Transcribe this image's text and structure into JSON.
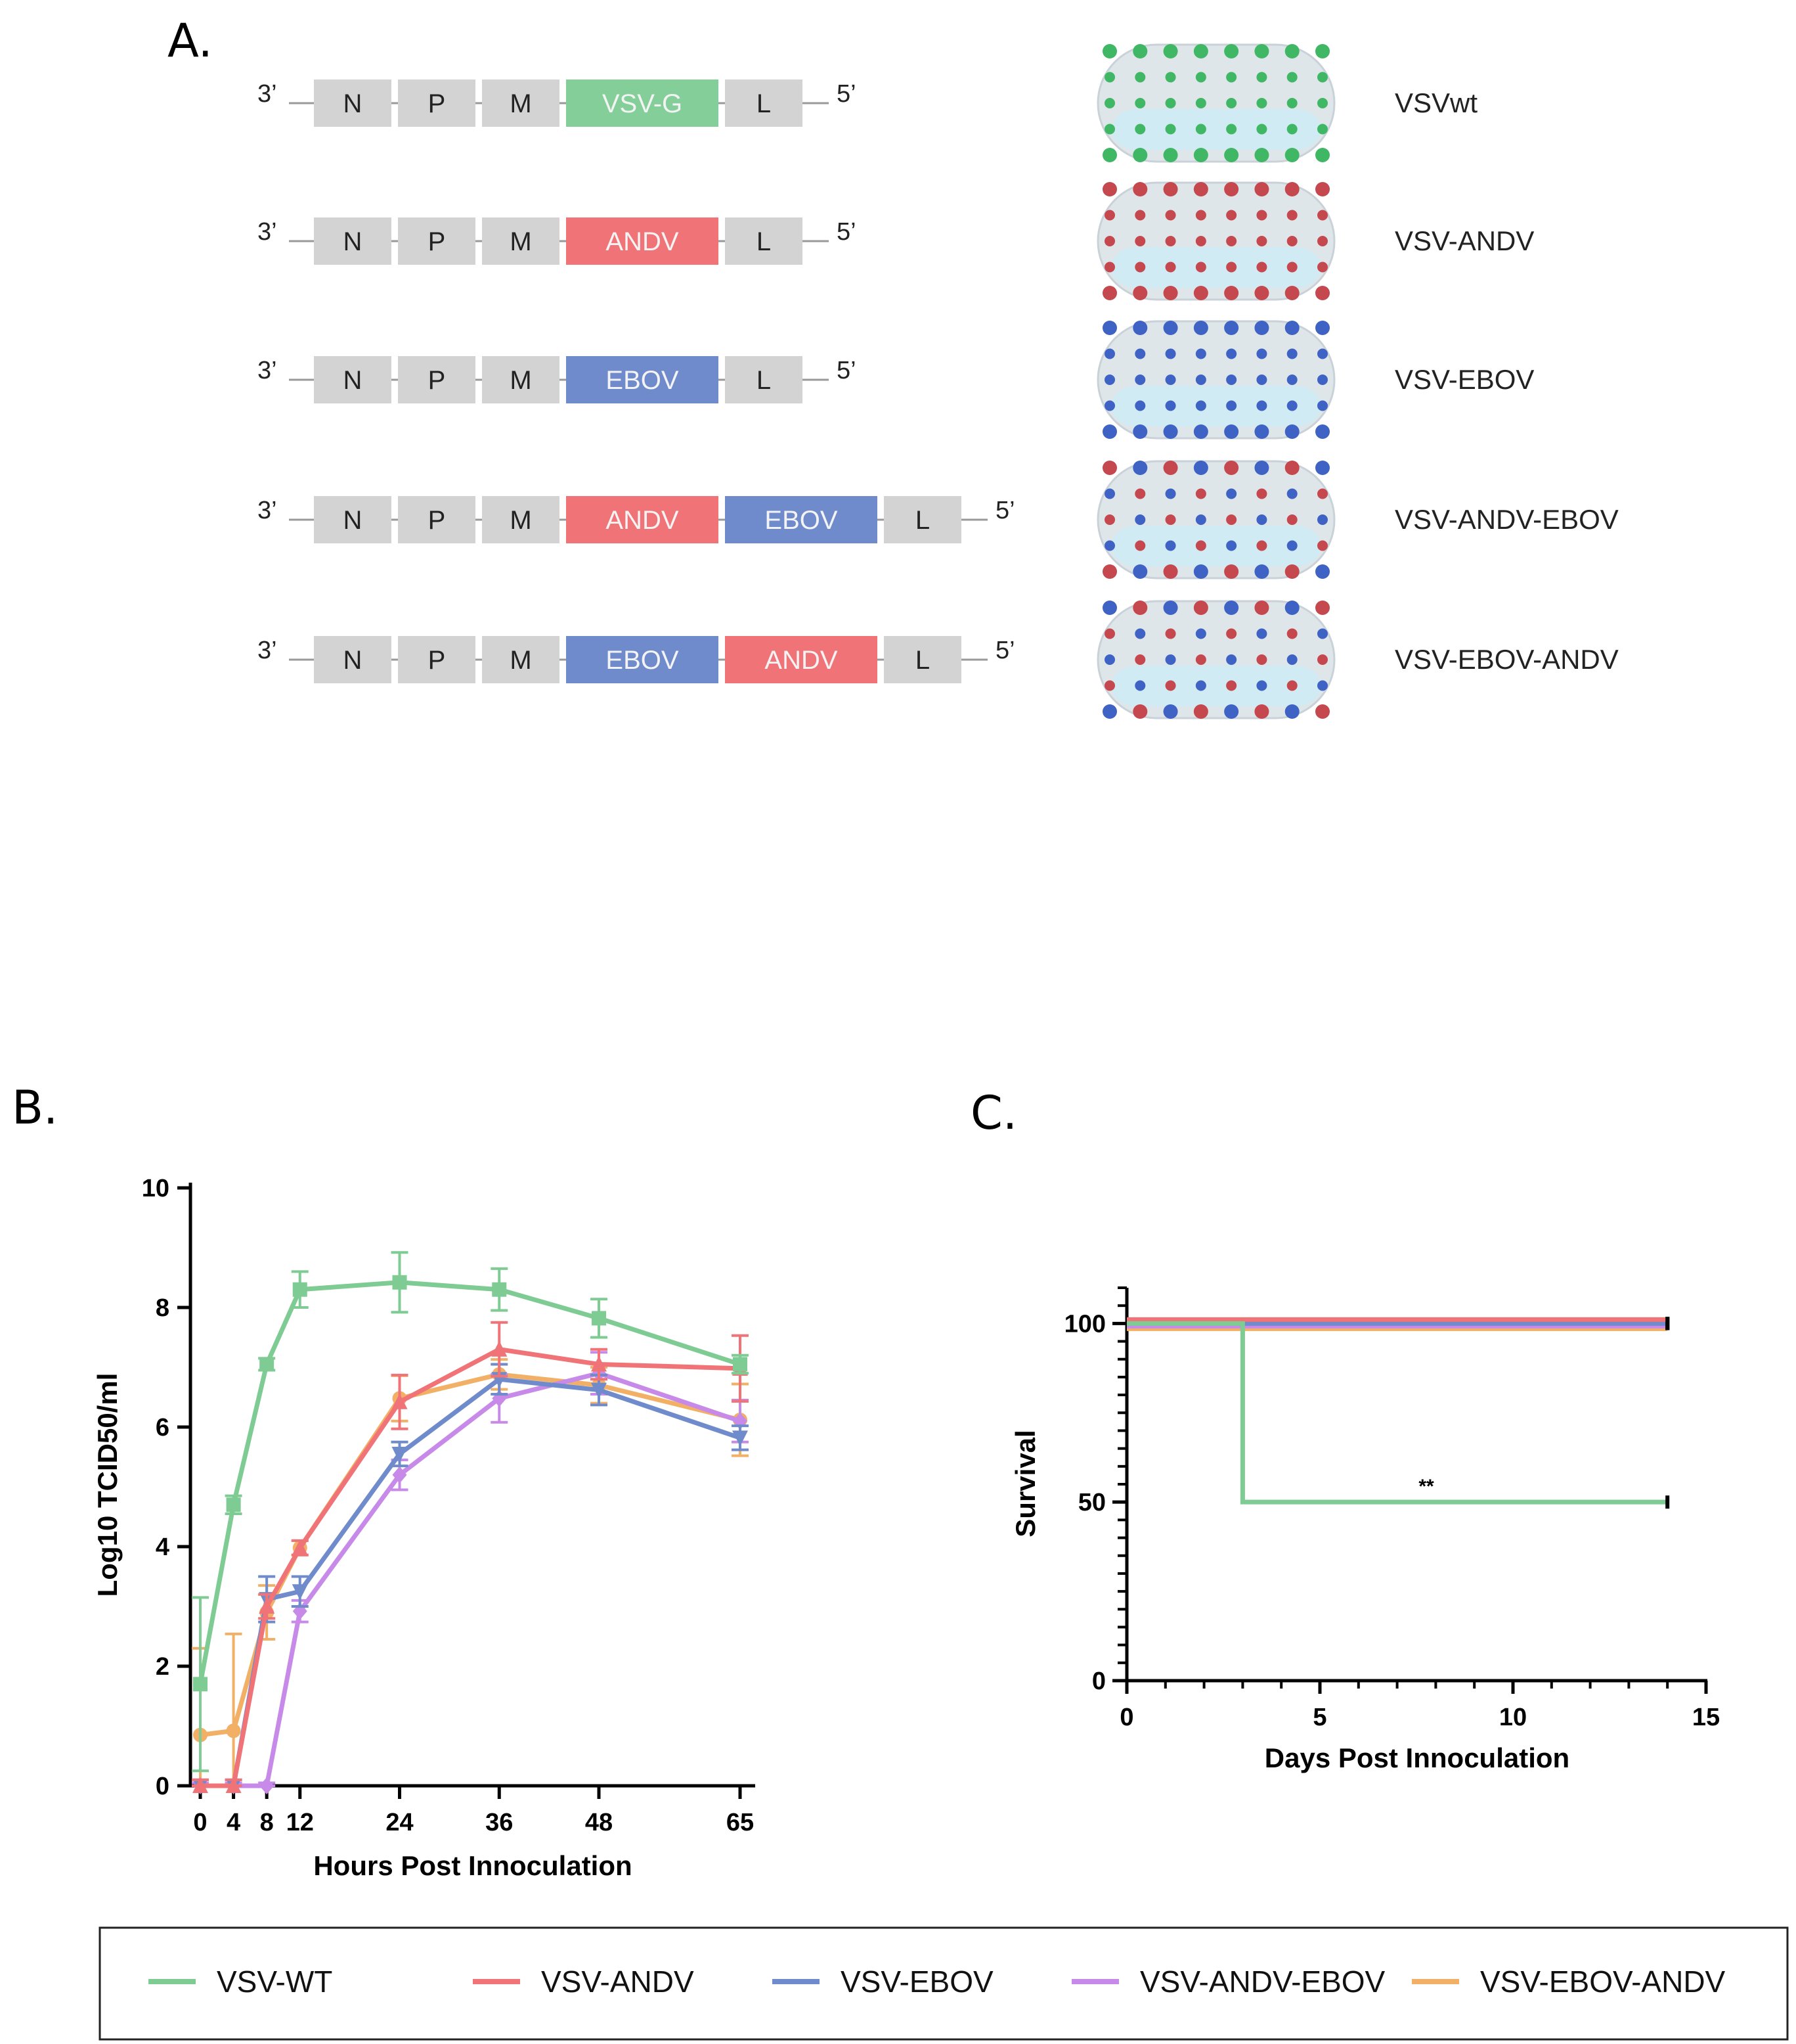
{
  "panels": {
    "a": "A.",
    "b": "B.",
    "c": "C."
  },
  "colors": {
    "wt": "#7ecb93",
    "andv": "#f07377",
    "ebov": "#6f8bcb",
    "andv_ebov": "#c88ae8",
    "ebov_andv": "#f2b066",
    "gene_box": "#d3d3d3",
    "gene_g": "#84cf99",
    "gene_andv": "#f07377",
    "gene_ebov": "#6f8bcb"
  },
  "panel_a": {
    "constructs": [
      {
        "name": "VSVwt",
        "prime3": "3’",
        "prime5": "5’",
        "genes": [
          "N",
          "P",
          "M",
          "VSV-G",
          "L"
        ],
        "gene_types": [
          "box",
          "box",
          "box",
          "g",
          "box"
        ],
        "spikes": [
          "g"
        ]
      },
      {
        "name": "VSV-ANDV",
        "prime3": "3’",
        "prime5": "5’",
        "genes": [
          "N",
          "P",
          "M",
          "ANDV",
          "L"
        ],
        "gene_types": [
          "box",
          "box",
          "box",
          "andv",
          "box"
        ],
        "spikes": [
          "andv"
        ]
      },
      {
        "name": "VSV-EBOV",
        "prime3": "3’",
        "prime5": "5’",
        "genes": [
          "N",
          "P",
          "M",
          "EBOV",
          "L"
        ],
        "gene_types": [
          "box",
          "box",
          "box",
          "ebov",
          "box"
        ],
        "spikes": [
          "ebov"
        ]
      },
      {
        "name": "VSV-ANDV-EBOV",
        "prime3": "3’",
        "prime5": "5’",
        "genes": [
          "N",
          "P",
          "M",
          "ANDV",
          "EBOV",
          "L"
        ],
        "gene_types": [
          "box",
          "box",
          "box",
          "andv",
          "ebov",
          "box"
        ],
        "spikes": [
          "andv",
          "ebov"
        ]
      },
      {
        "name": "VSV-EBOV-ANDV",
        "prime3": "3’",
        "prime5": "5’",
        "genes": [
          "N",
          "P",
          "M",
          "EBOV",
          "ANDV",
          "L"
        ],
        "gene_types": [
          "box",
          "box",
          "box",
          "ebov",
          "andv",
          "box"
        ],
        "spikes": [
          "ebov",
          "andv"
        ]
      }
    ]
  },
  "chart_data": [
    {
      "type": "line",
      "panel": "B",
      "title": "",
      "xlabel": "Hours Post Innoculation",
      "ylabel": "Log10 TCID50/ml",
      "x": [
        0,
        4,
        8,
        12,
        24,
        36,
        48,
        65
      ],
      "xticks": [
        0,
        4,
        8,
        12,
        24,
        36,
        48,
        65
      ],
      "yticks": [
        0,
        2,
        4,
        6,
        8,
        10
      ],
      "xlim": [
        0,
        65
      ],
      "ylim": [
        0,
        10
      ],
      "series": [
        {
          "name": "VSV-WT",
          "color_key": "wt",
          "marker": "square",
          "values": [
            1.7,
            4.7,
            7.05,
            8.3,
            8.42,
            8.3,
            7.82,
            7.05
          ],
          "err": [
            1.45,
            0.15,
            0.1,
            0.3,
            0.5,
            0.35,
            0.32,
            0.15
          ]
        },
        {
          "name": "VSV-ANDV",
          "color_key": "andv",
          "marker": "triangle-up",
          "values": [
            0,
            0,
            3.0,
            3.98,
            6.42,
            7.3,
            7.05,
            6.98
          ],
          "err": [
            0.1,
            0.1,
            0.2,
            0.12,
            0.45,
            0.45,
            0.25,
            0.55
          ]
        },
        {
          "name": "VSV-EBOV",
          "color_key": "ebov",
          "marker": "triangle-down",
          "values": [
            0,
            0,
            3.12,
            3.25,
            5.55,
            6.8,
            6.62,
            5.82
          ],
          "err": [
            0.1,
            0.1,
            0.38,
            0.25,
            0.2,
            0.25,
            0.25,
            0.2
          ]
        },
        {
          "name": "VSV-ANDV-EBOV",
          "color_key": "andv_ebov",
          "marker": "diamond",
          "values": [
            0,
            0,
            0,
            2.92,
            5.2,
            6.48,
            6.9,
            6.1
          ],
          "err": [
            0.05,
            0.05,
            0.05,
            0.18,
            0.25,
            0.4,
            0.35,
            0.35
          ]
        },
        {
          "name": "VSV-EBOV-ANDV",
          "color_key": "ebov_andv",
          "marker": "circle",
          "values": [
            0.85,
            0.92,
            2.9,
            3.98,
            6.48,
            6.88,
            6.7,
            6.12
          ],
          "err": [
            1.45,
            1.62,
            0.45,
            0.12,
            0.38,
            0.25,
            0.3,
            0.6
          ]
        }
      ]
    },
    {
      "type": "line",
      "subtype": "survival-step",
      "panel": "C",
      "title": "",
      "xlabel": "Days Post Innoculation",
      "ylabel": "Survival",
      "xticks": [
        0,
        5,
        10,
        15
      ],
      "yticks": [
        0,
        50,
        100
      ],
      "xlim": [
        0,
        15
      ],
      "ylim": [
        0,
        110
      ],
      "annotation": "**",
      "annotation_x": 7.8,
      "annotation_y": 55,
      "series": [
        {
          "name": "VSV-WT",
          "color_key": "wt",
          "steps": [
            [
              0,
              100
            ],
            [
              3,
              100
            ],
            [
              3,
              50
            ],
            [
              14,
              50
            ]
          ]
        },
        {
          "name": "VSV-ANDV",
          "color_key": "andv",
          "steps": [
            [
              0,
              100
            ],
            [
              14,
              100
            ]
          ]
        },
        {
          "name": "VSV-EBOV",
          "color_key": "ebov",
          "steps": [
            [
              0,
              100
            ],
            [
              14,
              100
            ]
          ]
        },
        {
          "name": "VSV-ANDV-EBOV",
          "color_key": "andv_ebov",
          "steps": [
            [
              0,
              100
            ],
            [
              14,
              100
            ]
          ]
        },
        {
          "name": "VSV-EBOV-ANDV",
          "color_key": "ebov_andv",
          "steps": [
            [
              0,
              100
            ],
            [
              14,
              100
            ]
          ]
        }
      ]
    }
  ],
  "legend": [
    {
      "label": "VSV-WT",
      "color_key": "wt"
    },
    {
      "label": "VSV-ANDV",
      "color_key": "andv"
    },
    {
      "label": "VSV-EBOV",
      "color_key": "ebov"
    },
    {
      "label": "VSV-ANDV-EBOV",
      "color_key": "andv_ebov"
    },
    {
      "label": "VSV-EBOV-ANDV",
      "color_key": "ebov_andv"
    }
  ]
}
